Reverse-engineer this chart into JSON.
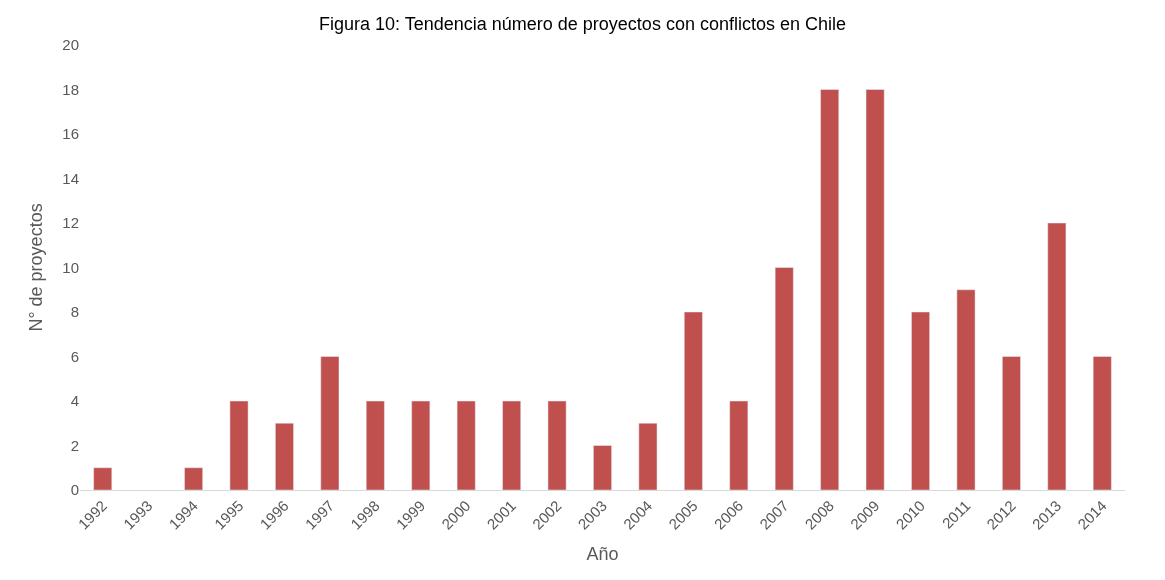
{
  "chart_data": {
    "type": "bar",
    "title": "Figura 10: Tendencia número de proyectos con conflictos en Chile",
    "xlabel": "Año",
    "ylabel": "N° de proyectos",
    "categories": [
      "1992",
      "1993",
      "1994",
      "1995",
      "1996",
      "1997",
      "1998",
      "1999",
      "2000",
      "2001",
      "2002",
      "2003",
      "2004",
      "2005",
      "2006",
      "2007",
      "2008",
      "2009",
      "2010",
      "2011",
      "2012",
      "2013",
      "2014"
    ],
    "values": [
      1,
      null,
      1,
      4,
      3,
      6,
      4,
      4,
      4,
      4,
      4,
      2,
      3,
      8,
      4,
      10,
      18,
      18,
      8,
      9,
      6,
      12,
      6
    ],
    "color": "#c0504d",
    "ylim": [
      0,
      20
    ],
    "yticks": [
      0,
      2,
      4,
      6,
      8,
      10,
      12,
      14,
      16,
      18,
      20
    ]
  }
}
